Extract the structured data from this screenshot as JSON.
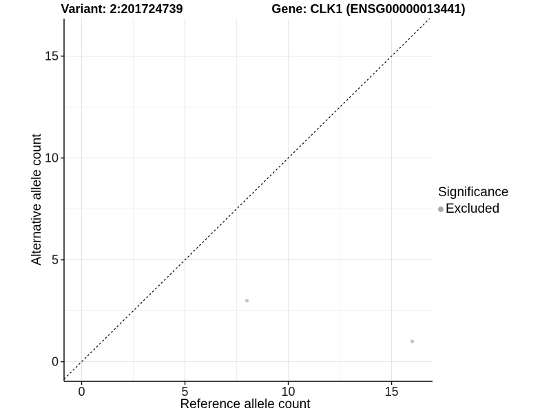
{
  "chart_data": {
    "type": "scatter",
    "titles": {
      "left": "Variant: 2:201724739",
      "right": "Gene: CLK1 (ENSG00000013441)"
    },
    "xlabel": "Reference allele count",
    "ylabel": "Alternative allele count",
    "x_ticks": {
      "values": [
        0,
        5,
        10,
        15
      ],
      "labels": [
        "0",
        "5",
        "10",
        "15"
      ]
    },
    "y_ticks": {
      "values": [
        0,
        5,
        10,
        15
      ],
      "labels": [
        "0",
        "5",
        "10",
        "15"
      ]
    },
    "x_minor": [
      2.5,
      7.5,
      12.5
    ],
    "y_minor": [
      2.5,
      7.5,
      12.5
    ],
    "xlim": [
      -0.85,
      16.98
    ],
    "ylim": [
      -0.96,
      16.84
    ],
    "grid": true,
    "legend_position": "right",
    "reference_line": {
      "type": "identity",
      "style": "dashed",
      "color": "#000000"
    },
    "series": [
      {
        "name": "Excluded",
        "marker_color": "#c4c4c4",
        "points": [
          {
            "x": 8,
            "y": 3
          },
          {
            "x": 16,
            "y": 1
          }
        ]
      }
    ],
    "legend": {
      "title": "Significance",
      "entries": [
        {
          "label": "Excluded",
          "marker_color": "#a9a9a9"
        }
      ]
    },
    "colors": {
      "grid_major": "#e2e2e2",
      "grid_minor": "#eeeeee",
      "axis": "#000000",
      "tick_text": "#1a1a1a",
      "point": "#c4c4c4"
    }
  }
}
